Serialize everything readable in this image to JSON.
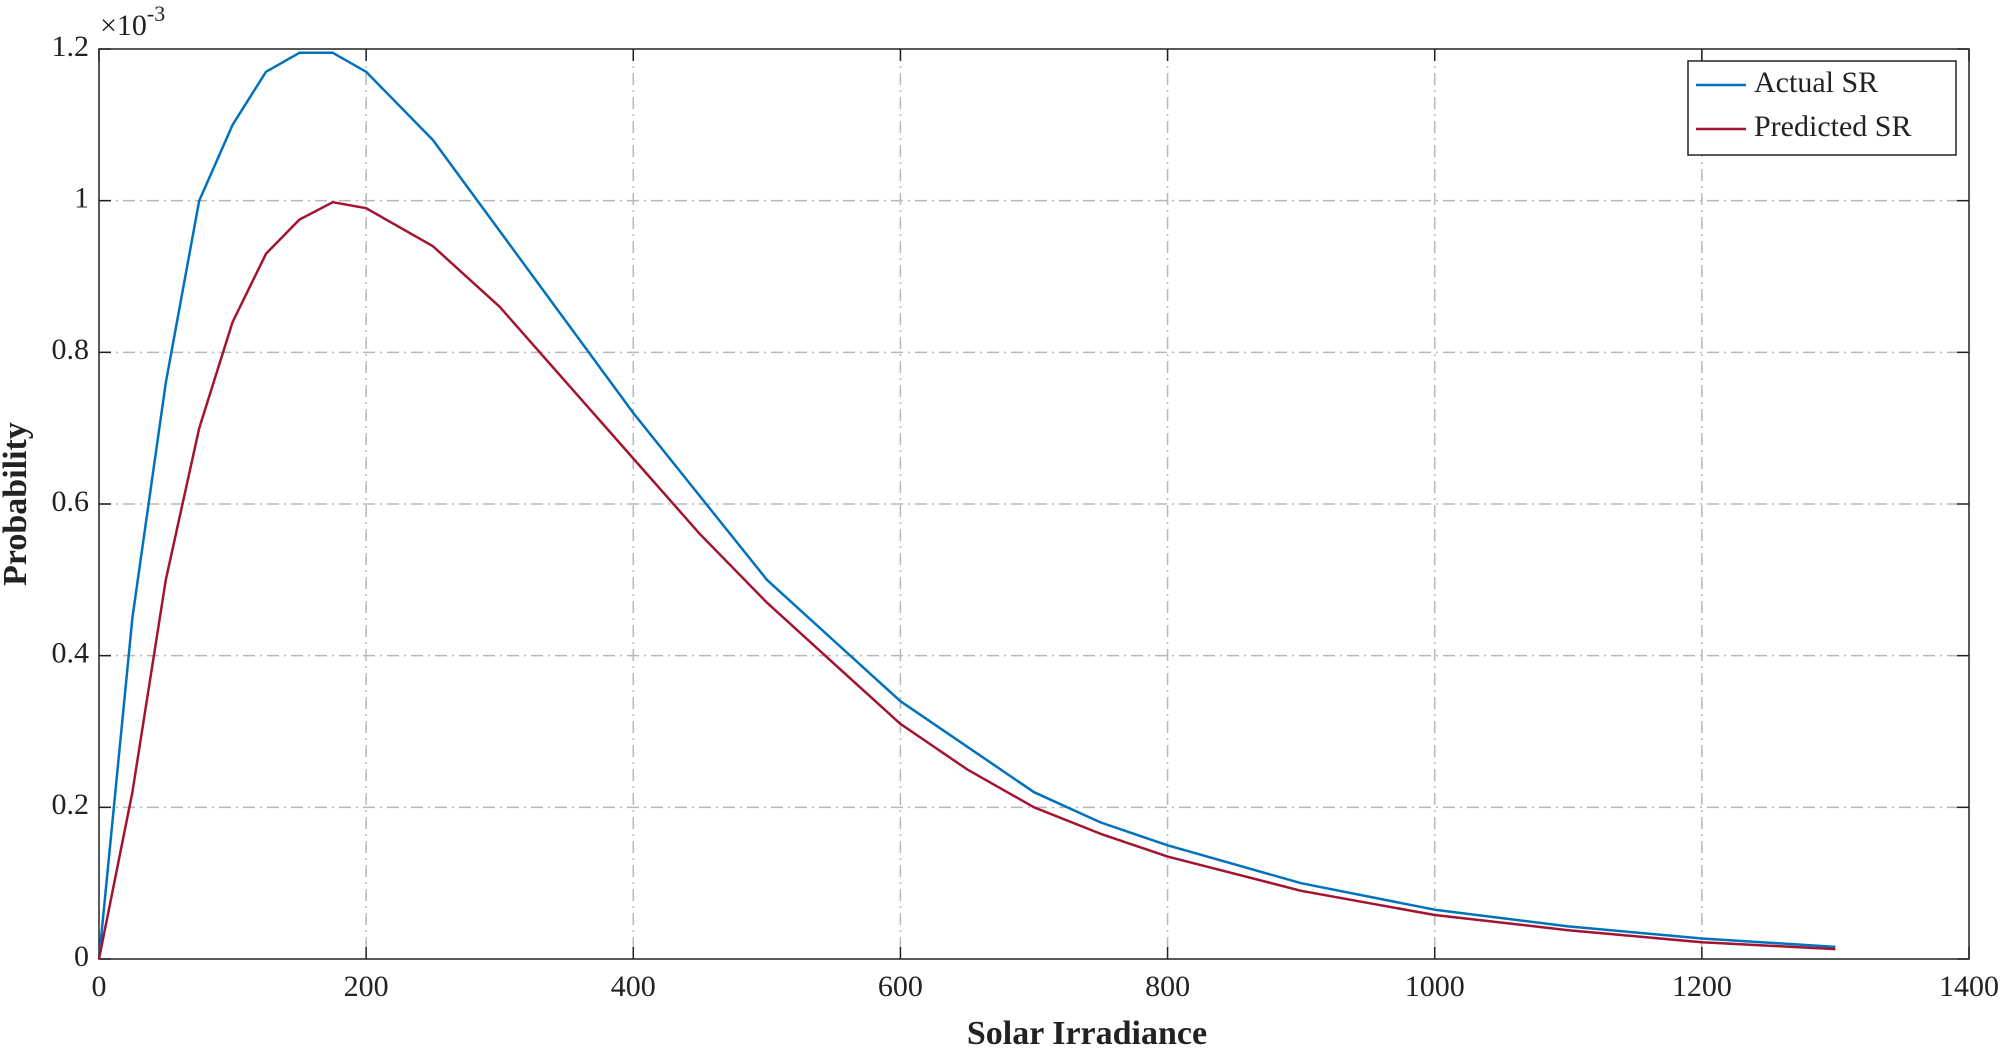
{
  "chart_data": {
    "type": "line",
    "x_label": "Solar Irradiance",
    "y_label": "Probability",
    "y_multiplier": {
      "base": "×10",
      "exponent": "-3"
    },
    "x": [
      0,
      25,
      50,
      75,
      100,
      125,
      150,
      175,
      200,
      250,
      300,
      350,
      400,
      450,
      500,
      550,
      600,
      650,
      700,
      750,
      800,
      900,
      1000,
      1100,
      1200,
      1300
    ],
    "series": [
      {
        "name": "Actual SR",
        "color": "#0072bd",
        "values": [
          0,
          0.45,
          0.76,
          1.0,
          1.1,
          1.17,
          1.195,
          1.195,
          1.17,
          1.08,
          0.96,
          0.84,
          0.72,
          0.61,
          0.5,
          0.42,
          0.34,
          0.28,
          0.22,
          0.18,
          0.15,
          0.1,
          0.065,
          0.043,
          0.027,
          0.016
        ]
      },
      {
        "name": "Predicted SR",
        "color": "#a2142f",
        "values": [
          0,
          0.22,
          0.5,
          0.7,
          0.84,
          0.93,
          0.975,
          0.998,
          0.99,
          0.94,
          0.86,
          0.76,
          0.66,
          0.56,
          0.47,
          0.39,
          0.31,
          0.25,
          0.2,
          0.165,
          0.135,
          0.09,
          0.058,
          0.038,
          0.022,
          0.013
        ]
      }
    ],
    "xlim": [
      0,
      1400
    ],
    "xticks": [
      0,
      200,
      400,
      600,
      800,
      1000,
      1200,
      1400
    ],
    "ylim": [
      0,
      1.2
    ],
    "yticks": [
      0,
      0.2,
      0.4,
      0.6,
      0.8,
      1,
      1.2
    ],
    "grid": true,
    "legend": "top-right"
  }
}
